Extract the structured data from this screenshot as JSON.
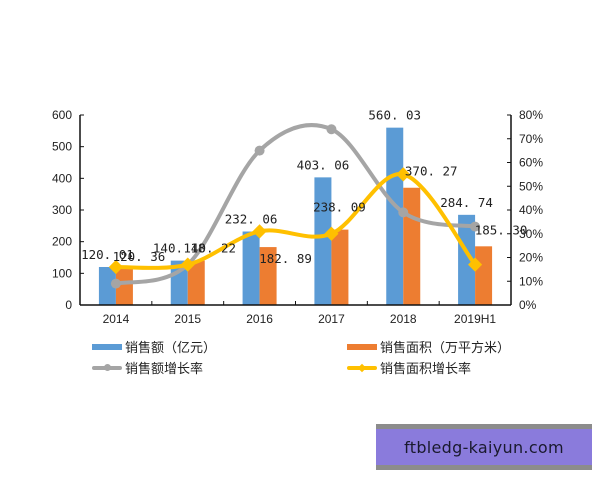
{
  "chart_data": {
    "type": "bar+line",
    "title": "",
    "categories": [
      "2014",
      "2015",
      "2016",
      "2017",
      "2018",
      "2019H1"
    ],
    "series": [
      {
        "name": "销售额（亿元）",
        "kind": "bar",
        "axis": "left",
        "color": "#5B9BD5",
        "values": [
          120.01,
          140.18,
          232.06,
          403.06,
          560.03,
          284.74
        ],
        "labels": [
          "120. 01",
          "140. 18",
          "232. 06",
          "403. 06",
          "560. 03",
          "284. 74"
        ]
      },
      {
        "name": "销售面积（万平方米）",
        "kind": "bar",
        "axis": "left",
        "color": "#ED7D31",
        "values": [
          120.36,
          140.22,
          182.89,
          238.09,
          370.27,
          185.3
        ],
        "labels": [
          "120. 36",
          "140. 22",
          "182. 89",
          "238. 09",
          "370. 27",
          "185. 30"
        ]
      },
      {
        "name": "销售额增长率",
        "kind": "line",
        "axis": "right",
        "color": "#A5A5A5",
        "marker": "circle",
        "values": [
          9,
          17,
          65,
          74,
          39,
          33
        ]
      },
      {
        "name": "销售面积增长率",
        "kind": "line",
        "axis": "right",
        "color": "#FFC000",
        "marker": "diamond",
        "values": [
          16,
          17,
          31,
          30,
          55,
          17
        ]
      }
    ],
    "left_axis": {
      "ylim": [
        0,
        600
      ],
      "ticks": [
        "0",
        "100",
        "200",
        "300",
        "400",
        "500",
        "600"
      ]
    },
    "right_axis": {
      "ylim": [
        0,
        80
      ],
      "ticks": [
        "0%",
        "10%",
        "20%",
        "30%",
        "40%",
        "50%",
        "60%",
        "70%",
        "80%"
      ]
    },
    "xlabel": "",
    "ylabel": "",
    "grid": false,
    "legend_position": "bottom"
  },
  "legend": {
    "items": [
      {
        "label": "销售额（亿元）",
        "color": "#5B9BD5",
        "type": "bar"
      },
      {
        "label": "销售面积（万平方米）",
        "color": "#ED7D31",
        "type": "bar"
      },
      {
        "label": "销售额增长率",
        "color": "#A5A5A5",
        "type": "line"
      },
      {
        "label": "销售面积增长率",
        "color": "#FFC000",
        "type": "line"
      }
    ]
  },
  "watermark": {
    "text": "ftbledg-kaiyun.com"
  }
}
